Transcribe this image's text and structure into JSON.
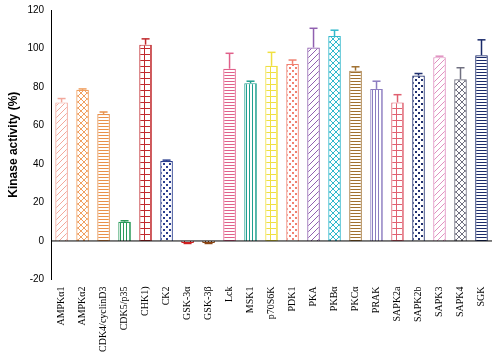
{
  "chart_data": {
    "type": "bar",
    "y_label": "Kinase activity (%)",
    "categories": [
      "AMPKα1",
      "AMPKα2",
      "CDK4/cyclinD3",
      "CDK5/p35",
      "CHK1)",
      "CK2",
      "GSK-3α",
      "GSK-3β",
      "Lck",
      "MSK1",
      "p70S6K",
      "PDK1",
      "PKA",
      "PKBα",
      "PKCα",
      "PRAK",
      "SAPK2a",
      "SAPK2b",
      "SAPK3",
      "SAPK4",
      "SGK"
    ],
    "values": [
      72,
      78.5,
      66,
      10,
      102,
      41.5,
      -1,
      -1,
      89.5,
      82,
      91,
      92,
      100.5,
      106.5,
      88.5,
      79,
      72,
      86,
      95.5,
      84,
      96.5
    ],
    "errors": [
      2,
      0.5,
      1,
      0.5,
      3,
      0.5,
      0.3,
      0.3,
      8,
      1,
      7,
      2,
      10,
      3,
      2,
      4,
      4,
      1,
      0.5,
      6,
      8
    ],
    "colors": [
      "#f2a89c",
      "#f0a060",
      "#e8904a",
      "#2a9a5a",
      "#c0282c",
      "#2b3f8f",
      "#d02020",
      "#8b4513",
      "#e0608a",
      "#1fa090",
      "#f0e040",
      "#f08070",
      "#9060b0",
      "#30b8cc",
      "#a07030",
      "#8c7cc0",
      "#e06070",
      "#203070",
      "#e090c0",
      "#707080",
      "#1a2a6a"
    ],
    "ylim": [
      -20,
      120
    ],
    "yticks": [
      -20,
      0,
      20,
      40,
      60,
      80,
      100,
      120
    ],
    "grid": false
  }
}
